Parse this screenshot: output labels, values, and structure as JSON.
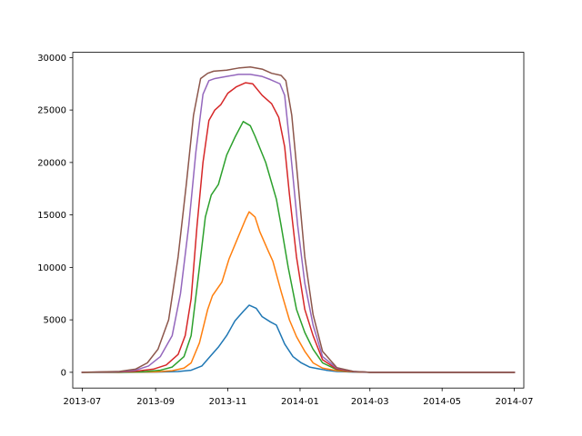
{
  "chart_data": {
    "type": "line",
    "title": "",
    "xlabel": "",
    "ylabel": "",
    "x_axis": {
      "kind": "date",
      "range": [
        "2013-06-23",
        "2014-07-09"
      ],
      "ticks": [
        "2013-07",
        "2013-09",
        "2013-11",
        "2014-01",
        "2014-03",
        "2014-05",
        "2014-07"
      ]
    },
    "y_axis": {
      "range": [
        -1500,
        30500
      ],
      "ticks": [
        0,
        5000,
        10000,
        15000,
        20000,
        25000,
        30000
      ]
    },
    "grid": false,
    "legend": "none",
    "series": [
      {
        "color": "#1f77b4",
        "points": [
          [
            "2013-07-01",
            0
          ],
          [
            "2013-08-01",
            0
          ],
          [
            "2013-09-01",
            20
          ],
          [
            "2013-09-20",
            80
          ],
          [
            "2013-10-01",
            200
          ],
          [
            "2013-10-10",
            600
          ],
          [
            "2013-10-17",
            1500
          ],
          [
            "2013-10-24",
            2400
          ],
          [
            "2013-10-31",
            3500
          ],
          [
            "2013-11-07",
            4900
          ],
          [
            "2013-11-14",
            5800
          ],
          [
            "2013-11-19",
            6400
          ],
          [
            "2013-11-25",
            6100
          ],
          [
            "2013-11-30",
            5300
          ],
          [
            "2013-12-07",
            4800
          ],
          [
            "2013-12-12",
            4500
          ],
          [
            "2013-12-19",
            2700
          ],
          [
            "2013-12-26",
            1500
          ],
          [
            "2014-01-02",
            900
          ],
          [
            "2014-01-09",
            500
          ],
          [
            "2014-01-16",
            350
          ],
          [
            "2014-01-23",
            200
          ],
          [
            "2014-02-01",
            80
          ],
          [
            "2014-02-15",
            20
          ],
          [
            "2014-03-01",
            0
          ],
          [
            "2014-05-01",
            0
          ],
          [
            "2014-07-01",
            0
          ]
        ]
      },
      {
        "color": "#ff7f0e",
        "points": [
          [
            "2013-07-01",
            0
          ],
          [
            "2013-08-01",
            0
          ],
          [
            "2013-09-01",
            40
          ],
          [
            "2013-09-15",
            150
          ],
          [
            "2013-09-25",
            400
          ],
          [
            "2013-10-01",
            900
          ],
          [
            "2013-10-08",
            2800
          ],
          [
            "2013-10-15",
            6000
          ],
          [
            "2013-10-19",
            7300
          ],
          [
            "2013-10-27",
            8600
          ],
          [
            "2013-11-02",
            10800
          ],
          [
            "2013-11-09",
            12700
          ],
          [
            "2013-11-16",
            14600
          ],
          [
            "2013-11-19",
            15300
          ],
          [
            "2013-11-24",
            14800
          ],
          [
            "2013-11-28",
            13400
          ],
          [
            "2013-12-05",
            11600
          ],
          [
            "2013-12-09",
            10600
          ],
          [
            "2013-12-16",
            7700
          ],
          [
            "2013-12-23",
            5000
          ],
          [
            "2013-12-29",
            3400
          ],
          [
            "2014-01-05",
            2000
          ],
          [
            "2014-01-12",
            900
          ],
          [
            "2014-01-20",
            400
          ],
          [
            "2014-02-01",
            150
          ],
          [
            "2014-02-15",
            40
          ],
          [
            "2014-03-01",
            0
          ],
          [
            "2014-05-01",
            0
          ],
          [
            "2014-07-01",
            0
          ]
        ]
      },
      {
        "color": "#2ca02c",
        "points": [
          [
            "2013-07-01",
            0
          ],
          [
            "2013-08-01",
            0
          ],
          [
            "2013-08-20",
            40
          ],
          [
            "2013-09-05",
            200
          ],
          [
            "2013-09-15",
            500
          ],
          [
            "2013-09-25",
            1500
          ],
          [
            "2013-10-01",
            3500
          ],
          [
            "2013-10-08",
            10000
          ],
          [
            "2013-10-13",
            14800
          ],
          [
            "2013-10-18",
            16900
          ],
          [
            "2013-10-24",
            17900
          ],
          [
            "2013-10-31",
            20700
          ],
          [
            "2013-11-07",
            22400
          ],
          [
            "2013-11-14",
            23900
          ],
          [
            "2013-11-20",
            23500
          ],
          [
            "2013-11-24",
            22500
          ],
          [
            "2013-12-03",
            20000
          ],
          [
            "2013-12-12",
            16500
          ],
          [
            "2013-12-16",
            14000
          ],
          [
            "2013-12-22",
            10000
          ],
          [
            "2013-12-29",
            6000
          ],
          [
            "2014-01-05",
            3800
          ],
          [
            "2014-01-12",
            2200
          ],
          [
            "2014-01-20",
            900
          ],
          [
            "2014-02-01",
            250
          ],
          [
            "2014-02-15",
            60
          ],
          [
            "2014-03-01",
            0
          ],
          [
            "2014-05-01",
            0
          ],
          [
            "2014-07-01",
            0
          ]
        ]
      },
      {
        "color": "#d62728",
        "points": [
          [
            "2013-07-01",
            0
          ],
          [
            "2013-08-01",
            30
          ],
          [
            "2013-08-15",
            100
          ],
          [
            "2013-08-30",
            300
          ],
          [
            "2013-09-10",
            700
          ],
          [
            "2013-09-20",
            1700
          ],
          [
            "2013-09-26",
            3500
          ],
          [
            "2013-10-01",
            7000
          ],
          [
            "2013-10-06",
            14000
          ],
          [
            "2013-10-11",
            20000
          ],
          [
            "2013-10-16",
            24000
          ],
          [
            "2013-10-21",
            25000
          ],
          [
            "2013-10-26",
            25500
          ],
          [
            "2013-11-01",
            26600
          ],
          [
            "2013-11-08",
            27200
          ],
          [
            "2013-11-16",
            27600
          ],
          [
            "2013-11-22",
            27500
          ],
          [
            "2013-11-30",
            26400
          ],
          [
            "2013-12-08",
            25600
          ],
          [
            "2013-12-14",
            24300
          ],
          [
            "2013-12-19",
            21500
          ],
          [
            "2013-12-23",
            17000
          ],
          [
            "2013-12-29",
            11000
          ],
          [
            "2014-01-05",
            6000
          ],
          [
            "2014-01-12",
            3500
          ],
          [
            "2014-01-20",
            1200
          ],
          [
            "2014-02-01",
            300
          ],
          [
            "2014-02-15",
            60
          ],
          [
            "2014-03-01",
            0
          ],
          [
            "2014-05-01",
            0
          ],
          [
            "2014-07-01",
            0
          ]
        ]
      },
      {
        "color": "#9467bd",
        "points": [
          [
            "2013-07-01",
            0
          ],
          [
            "2013-08-01",
            50
          ],
          [
            "2013-08-15",
            200
          ],
          [
            "2013-08-26",
            600
          ],
          [
            "2013-09-05",
            1500
          ],
          [
            "2013-09-15",
            3500
          ],
          [
            "2013-09-22",
            7500
          ],
          [
            "2013-09-29",
            14000
          ],
          [
            "2013-10-05",
            21000
          ],
          [
            "2013-10-11",
            26500
          ],
          [
            "2013-10-16",
            27800
          ],
          [
            "2013-10-21",
            28000
          ],
          [
            "2013-10-31",
            28200
          ],
          [
            "2013-11-10",
            28400
          ],
          [
            "2013-11-20",
            28400
          ],
          [
            "2013-11-30",
            28200
          ],
          [
            "2013-12-07",
            27900
          ],
          [
            "2013-12-15",
            27500
          ],
          [
            "2013-12-19",
            26400
          ],
          [
            "2013-12-24",
            21000
          ],
          [
            "2013-12-30",
            14000
          ],
          [
            "2014-01-05",
            8500
          ],
          [
            "2014-01-12",
            4500
          ],
          [
            "2014-01-20",
            1500
          ],
          [
            "2014-02-01",
            400
          ],
          [
            "2014-02-15",
            80
          ],
          [
            "2014-03-01",
            0
          ],
          [
            "2014-05-01",
            0
          ],
          [
            "2014-07-01",
            0
          ]
        ]
      },
      {
        "color": "#8c564b",
        "points": [
          [
            "2013-07-01",
            0
          ],
          [
            "2013-08-01",
            80
          ],
          [
            "2013-08-15",
            300
          ],
          [
            "2013-08-25",
            900
          ],
          [
            "2013-09-03",
            2200
          ],
          [
            "2013-09-12",
            5000
          ],
          [
            "2013-09-20",
            11000
          ],
          [
            "2013-09-27",
            18000
          ],
          [
            "2013-10-03",
            24500
          ],
          [
            "2013-10-09",
            28000
          ],
          [
            "2013-10-15",
            28500
          ],
          [
            "2013-10-20",
            28700
          ],
          [
            "2013-10-31",
            28800
          ],
          [
            "2013-11-10",
            29000
          ],
          [
            "2013-11-20",
            29100
          ],
          [
            "2013-11-30",
            28900
          ],
          [
            "2013-12-08",
            28500
          ],
          [
            "2013-12-16",
            28300
          ],
          [
            "2013-12-20",
            27800
          ],
          [
            "2013-12-25",
            24500
          ],
          [
            "2013-12-30",
            18500
          ],
          [
            "2014-01-05",
            11000
          ],
          [
            "2014-01-12",
            5500
          ],
          [
            "2014-01-20",
            2000
          ],
          [
            "2014-02-01",
            450
          ],
          [
            "2014-02-15",
            90
          ],
          [
            "2014-03-01",
            0
          ],
          [
            "2014-05-01",
            0
          ],
          [
            "2014-07-01",
            0
          ]
        ]
      }
    ]
  }
}
